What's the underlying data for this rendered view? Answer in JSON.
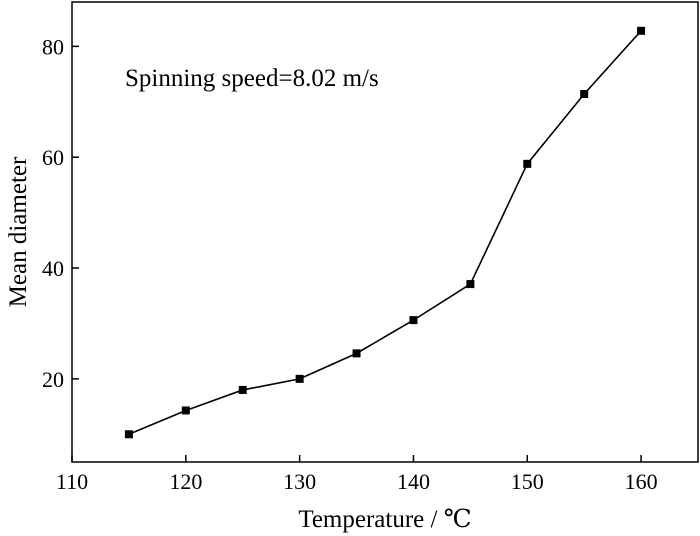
{
  "chart_data": {
    "type": "line",
    "title": "",
    "xlabel": "Temperature / ℃",
    "ylabel": "Mean diameter",
    "annotation": "Spinning speed=8.02 m/s",
    "xlim": [
      110,
      165
    ],
    "ylim": [
      5,
      88
    ],
    "xticks": [
      110,
      120,
      130,
      140,
      150,
      160
    ],
    "yticks": [
      20,
      40,
      60,
      80
    ],
    "marker": "square",
    "grid": false,
    "legend": "none",
    "series": [
      {
        "x": [
          115,
          120,
          125,
          130,
          135,
          140,
          145,
          150,
          155,
          160
        ],
        "y": [
          10.0,
          14.3,
          18.0,
          20.0,
          24.6,
          30.6,
          37.1,
          58.8,
          71.4,
          82.8
        ]
      }
    ],
    "colors": {
      "line": "#000000",
      "marker": "#000000",
      "axis": "#000000"
    }
  }
}
